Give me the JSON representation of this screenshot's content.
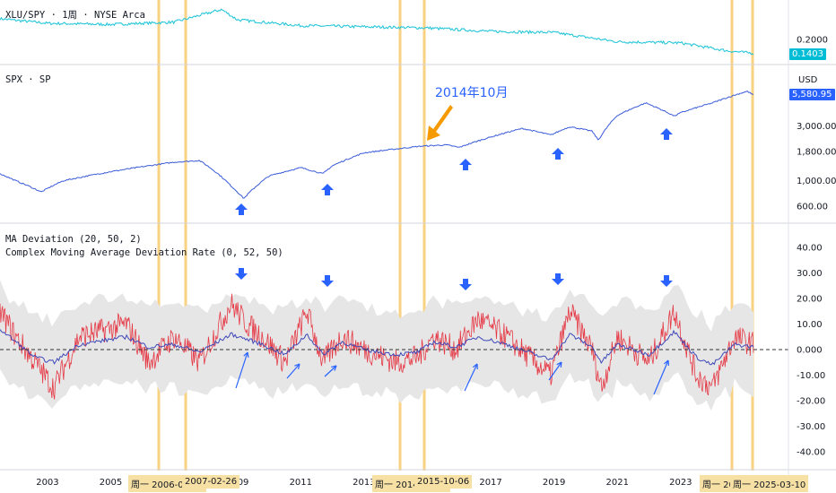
{
  "colors": {
    "xlu_line": "#26c6da",
    "spx_line": "#3a5bd9",
    "deviation_line": "#e53945",
    "ma_line": "#3f48b8",
    "band_fill": "#e6e6e6",
    "vline": "#f5c15a",
    "arrow_blue": "#2962ff",
    "arrow_orange": "#f59a00",
    "spx_tag": "#2962ff",
    "xlu_tag": "#00bcd4"
  },
  "panes": {
    "xlu": {
      "title": "XLU/SPY · 1周 · NYSE Arca",
      "ticks": [
        "0.2000"
      ],
      "last_price": "0.1403"
    },
    "spx": {
      "title": "SPX · SP",
      "currency": "USD",
      "ticks": [
        "3,000.00",
        "1,800.00",
        "1,000.00",
        "600.00"
      ],
      "last_price": "5,580.95",
      "annotation": "2014年10月"
    },
    "deviation": {
      "title_line1": "MA Deviation (20, 50, 2)",
      "title_line2": "Complex Moving Average Deviation Rate (0, 52, 50)",
      "ticks": [
        "40.00",
        "30.00",
        "20.00",
        "10.00",
        "0.000",
        "-10.00",
        "-20.00",
        "-30.00",
        "-40.00"
      ]
    }
  },
  "x_axis": {
    "years": [
      "2003",
      "2005",
      "2007",
      "2009",
      "2011",
      "2013",
      "2015",
      "2017",
      "2019",
      "2021",
      "2023"
    ],
    "date_tags": [
      "周一 2006-04-17",
      "2007-02-26",
      "周一 2014-12-29",
      "2015-10-06",
      "周一 2024-07-15",
      "周一 2025-03-10"
    ]
  },
  "chart_data": [
    {
      "type": "line",
      "title": "XLU/SPY · 1周 · NYSE Arca",
      "x": [
        2001.5,
        2003,
        2005,
        2007,
        2008.5,
        2009,
        2011,
        2013,
        2015,
        2017,
        2019,
        2021,
        2023,
        2024.5,
        2025.3
      ],
      "series": [
        {
          "values": [
            0.29,
            0.27,
            0.265,
            0.275,
            0.33,
            0.285,
            0.26,
            0.255,
            0.25,
            0.235,
            0.23,
            0.19,
            0.185,
            0.15,
            0.14
          ]
        }
      ]
    },
    {
      "type": "line",
      "title": "SPX · SP",
      "ylim": [
        500,
        6500
      ],
      "x": [
        2001.5,
        2002,
        2002.8,
        2003.5,
        2005,
        2007,
        2007.8,
        2008.8,
        2009.2,
        2010,
        2011,
        2011.7,
        2012,
        2013,
        2014.8,
        2015.6,
        2016,
        2017,
        2018,
        2018.9,
        2019.5,
        2020.2,
        2020.4,
        2021,
        2021.9,
        2022.8,
        2023,
        2024,
        2025.1,
        2025.3
      ],
      "series": [
        {
          "values": [
            1150,
            1000,
            800,
            1000,
            1200,
            1450,
            1500,
            900,
            700,
            1100,
            1300,
            1150,
            1350,
            1750,
            2000,
            2050,
            1950,
            2400,
            2850,
            2500,
            2950,
            2700,
            2250,
            3700,
            4750,
            3650,
            3900,
            4750,
            6000,
            5580.95
          ]
        }
      ]
    },
    {
      "type": "line",
      "title": "MA Deviation (20, 50, 2)",
      "ylim": [
        -45,
        45
      ],
      "x": [
        2001.5,
        2002,
        2002.6,
        2003.2,
        2004,
        2005.5,
        2006.2,
        2007,
        2007.8,
        2008.8,
        2009.3,
        2009.8,
        2010.5,
        2011.2,
        2011.7,
        2012.3,
        2013,
        2014,
        2014.7,
        2015.2,
        2015.9,
        2016.6,
        2017.5,
        2018.4,
        2018.9,
        2019.5,
        2020.2,
        2020.5,
        2021,
        2022,
        2022.8,
        2023.5,
        2024,
        2024.7,
        2025.3
      ],
      "series": [
        {
          "values": [
            15,
            5,
            -5,
            -15,
            5,
            10,
            -5,
            5,
            -5,
            18,
            10,
            5,
            -5,
            15,
            -5,
            5,
            0,
            -5,
            -3,
            5,
            0,
            12,
            5,
            -5,
            -10,
            15,
            0,
            -15,
            5,
            -5,
            15,
            -10,
            -15,
            5,
            2
          ]
        },
        {
          "values": [
            8,
            3,
            -3,
            -5,
            2,
            5,
            1,
            2,
            -1,
            6,
            4,
            2,
            -2,
            6,
            -2,
            3,
            0,
            -2,
            -1,
            3,
            1,
            5,
            2,
            -2,
            -4,
            6,
            1,
            -5,
            2,
            -2,
            7,
            -3,
            -6,
            2,
            1
          ]
        }
      ]
    }
  ]
}
